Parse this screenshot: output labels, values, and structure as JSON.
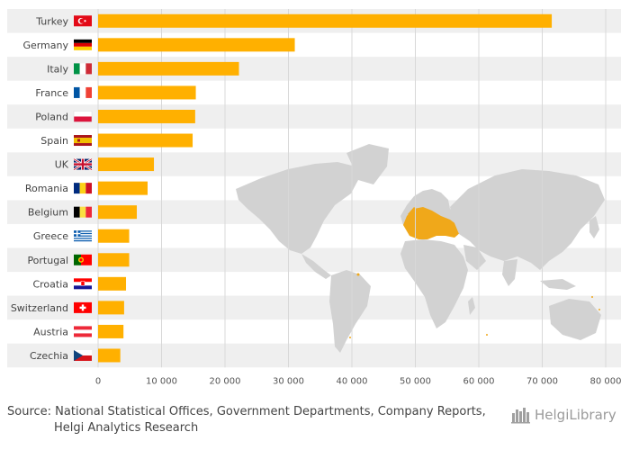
{
  "chart_data": {
    "type": "bar",
    "orientation": "horizontal",
    "categories": [
      "Turkey",
      "Germany",
      "Italy",
      "France",
      "Poland",
      "Spain",
      "UK",
      "Romania",
      "Belgium",
      "Greece",
      "Portugal",
      "Croatia",
      "Switzerland",
      "Austria",
      "Czechia"
    ],
    "values": [
      71500,
      31000,
      22200,
      15400,
      15300,
      14900,
      8800,
      7800,
      6100,
      4900,
      4900,
      4400,
      4100,
      4000,
      3500
    ],
    "xlim": [
      0,
      80000
    ],
    "xticks": [
      0,
      10000,
      20000,
      30000,
      40000,
      50000,
      60000,
      70000,
      80000
    ],
    "xtick_labels": [
      "0",
      "10 000",
      "20 000",
      "30 000",
      "40 000",
      "50 000",
      "60 000",
      "70 000",
      "80 000"
    ],
    "bar_color": "#ffb000",
    "title": "",
    "xlabel": "",
    "ylabel": "",
    "grid": true
  },
  "flags": [
    "turkey-flag-icon",
    "germany-flag-icon",
    "italy-flag-icon",
    "france-flag-icon",
    "poland-flag-icon",
    "spain-flag-icon",
    "uk-flag-icon",
    "romania-flag-icon",
    "belgium-flag-icon",
    "greece-flag-icon",
    "portugal-flag-icon",
    "croatia-flag-icon",
    "switzerland-flag-icon",
    "austria-flag-icon",
    "czechia-flag-icon"
  ],
  "map": {
    "icon": "world-map-icon",
    "land_color": "#d2d2d2",
    "highlight_color": "#f0a81a"
  },
  "footer": {
    "source_label": "Source:",
    "source_line1": "National Statistical Offices, Government Departments, Company Reports,",
    "source_line2": "Helgi Analytics Research",
    "logo_text": "HelgiLibrary",
    "logo_icon": "helgi-library-logo-icon"
  }
}
